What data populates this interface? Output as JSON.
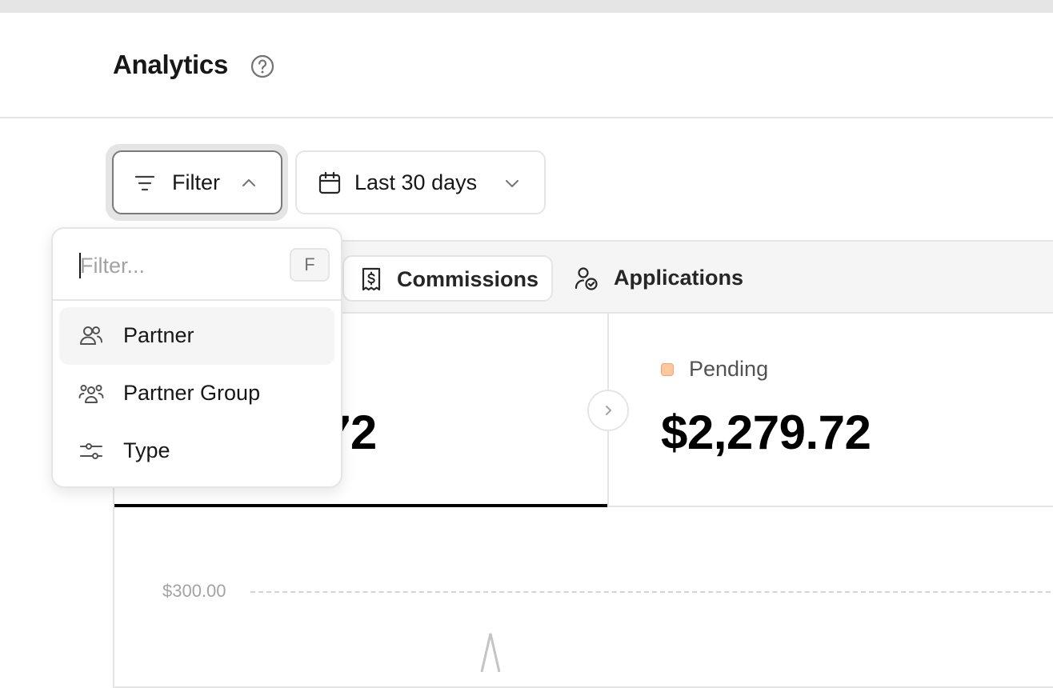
{
  "header": {
    "title": "Analytics"
  },
  "toolbar": {
    "filter_label": "Filter",
    "date_range_label": "Last 30 days"
  },
  "filter_dropdown": {
    "placeholder": "Filter...",
    "shortcut": "F",
    "items": [
      {
        "label": "Partner",
        "icon": "users-icon",
        "highlighted": true
      },
      {
        "label": "Partner Group",
        "icon": "user-group-icon",
        "highlighted": false
      },
      {
        "label": "Type",
        "icon": "sliders-icon",
        "highlighted": false
      }
    ]
  },
  "tabs": [
    {
      "label": "Commissions",
      "icon": "receipt-dollar-icon",
      "selected": true
    },
    {
      "label": "Applications",
      "icon": "user-check-icon",
      "selected": false
    }
  ],
  "metrics": {
    "left_value_partial": "72",
    "pending": {
      "label": "Pending",
      "value": "$2,279.72",
      "color": "#fcc9a1"
    }
  },
  "chart": {
    "y_tick": "$300.00"
  },
  "colors": {
    "text": "#171717",
    "border": "#e5e5e5",
    "muted": "#a3a3a3",
    "pending_swatch": "#fcc9a1"
  }
}
